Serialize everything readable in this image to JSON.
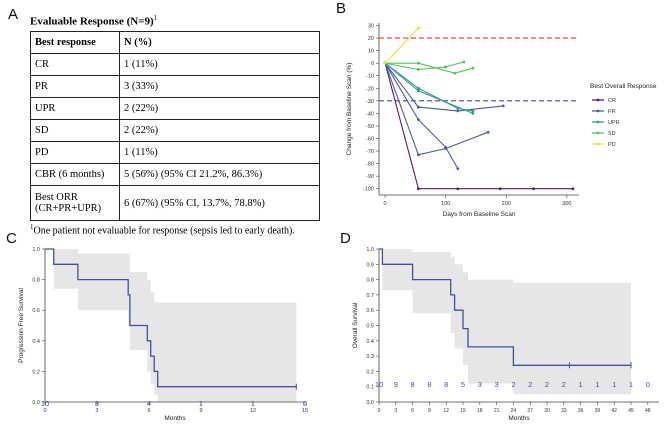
{
  "labels": {
    "A": "A",
    "B": "B",
    "C": "C",
    "D": "D"
  },
  "panelA": {
    "title": "Evaluable Response (N=9)",
    "title_sup": "1",
    "header": [
      "Best response",
      "N (%)"
    ],
    "rows": [
      {
        "label": "CR",
        "value": "1 (11%)"
      },
      {
        "label": "PR",
        "value": "3 (33%)"
      },
      {
        "label": "UPR",
        "value": "2 (22%)"
      },
      {
        "label": "SD",
        "value": "2 (22%)"
      },
      {
        "label": "PD",
        "value": "1 (11%)"
      },
      {
        "label": "CBR (6 months)",
        "value": "5 (56%) (95% CI 21.2%, 86.3%)"
      },
      {
        "label": "Best ORR (CR+PR+UPR)",
        "value": "6 (67%) (95% CI, 13.7%, 78.8%)"
      }
    ],
    "footnote_sup": "1",
    "footnote": "One patient not evaluable for response (sepsis led to early death)."
  },
  "chart_data": [
    {
      "id": "B",
      "type": "line",
      "xlabel": "Days from Baseline Scan",
      "ylabel": "Change from Baseline Scan (%)",
      "xlim": [
        -10,
        320
      ],
      "ylim": [
        -105,
        32
      ],
      "xticks": [
        0,
        100,
        200,
        300
      ],
      "yticks": [
        30,
        20,
        10,
        0,
        -10,
        -20,
        -30,
        -40,
        -50,
        -60,
        -70,
        -80,
        -90,
        -100
      ],
      "reference_lines": [
        {
          "y": 20,
          "color": "#e53935"
        },
        {
          "y": -30,
          "color": "#3949ab"
        }
      ],
      "legend_title": "Best Overall Response",
      "legend_position": "right",
      "series": [
        {
          "name": "CR",
          "color": "#5b1a6e",
          "lines": [
            [
              [
                0,
                0
              ],
              [
                55,
                -100
              ],
              [
                120,
                -100
              ],
              [
                190,
                -100
              ],
              [
                245,
                -100
              ],
              [
                310,
                -100
              ]
            ]
          ]
        },
        {
          "name": "PR",
          "color": "#4a5ca8",
          "lines": [
            [
              [
                0,
                0
              ],
              [
                55,
                -73
              ],
              [
                100,
                -68
              ],
              [
                170,
                -55
              ]
            ],
            [
              [
                0,
                0
              ],
              [
                55,
                -35
              ],
              [
                120,
                -38
              ],
              [
                195,
                -34
              ]
            ],
            [
              [
                0,
                0
              ],
              [
                55,
                -45
              ],
              [
                100,
                -67
              ],
              [
                120,
                -84
              ]
            ]
          ]
        },
        {
          "name": "UPR",
          "color": "#2e9e8f",
          "lines": [
            [
              [
                0,
                0
              ],
              [
                55,
                -20
              ],
              [
                120,
                -36
              ],
              [
                145,
                -38
              ]
            ],
            [
              [
                0,
                0
              ],
              [
                55,
                -22
              ],
              [
                145,
                -40
              ]
            ]
          ]
        },
        {
          "name": "SD",
          "color": "#52c35a",
          "lines": [
            [
              [
                0,
                0
              ],
              [
                55,
                0
              ],
              [
                115,
                -8
              ],
              [
                145,
                -4
              ]
            ],
            [
              [
                0,
                0
              ],
              [
                55,
                -5
              ],
              [
                100,
                -3
              ],
              [
                130,
                1
              ]
            ]
          ]
        },
        {
          "name": "PD",
          "color": "#f2e027",
          "lines": [
            [
              [
                0,
                0
              ],
              [
                55,
                28
              ]
            ]
          ]
        }
      ]
    },
    {
      "id": "C",
      "type": "line",
      "title": "",
      "xlabel": "Months",
      "ylabel": "Progression Free Survival",
      "xlim": [
        0,
        15
      ],
      "ylim": [
        0,
        1
      ],
      "xticks": [
        0,
        3,
        6,
        9,
        12,
        15
      ],
      "yticks": [
        0.0,
        0.2,
        0.4,
        0.6,
        0.8,
        1.0
      ],
      "series": [
        {
          "name": "PFS",
          "color": "#3f51a3",
          "x": [
            0,
            0.5,
            0.5,
            1.9,
            1.9,
            4.8,
            4.8,
            4.9,
            4.9,
            5.9,
            5.9,
            6.1,
            6.1,
            6.3,
            6.3,
            6.5,
            6.5,
            14.5
          ],
          "y": [
            1.0,
            1.0,
            0.9,
            0.9,
            0.8,
            0.8,
            0.7,
            0.7,
            0.5,
            0.5,
            0.4,
            0.4,
            0.3,
            0.3,
            0.2,
            0.2,
            0.1,
            0.1
          ]
        }
      ],
      "ci": {
        "x": [
          0,
          0.5,
          1.9,
          4.8,
          4.9,
          5.9,
          6.1,
          6.3,
          6.5,
          14.5
        ],
        "upper": [
          1.0,
          1.0,
          0.97,
          0.97,
          0.85,
          0.8,
          0.72,
          0.65,
          0.65,
          0.65
        ],
        "lower": [
          1.0,
          0.74,
          0.6,
          0.5,
          0.34,
          0.2,
          0.12,
          0.05,
          0.0,
          0.0
        ]
      },
      "at_risk": {
        "x": [
          0,
          3,
          6,
          9,
          12,
          15
        ],
        "labels": [
          "10",
          "8",
          "4",
          "1",
          "1",
          "0"
        ]
      }
    },
    {
      "id": "D",
      "type": "line",
      "xlabel": "Months",
      "ylabel": "Overall Survival",
      "xlim": [
        0,
        50
      ],
      "ylim": [
        0,
        1
      ],
      "xticks": [
        0,
        3,
        6,
        9,
        12,
        15,
        18,
        21,
        24,
        27,
        30,
        33,
        36,
        39,
        42,
        45,
        48
      ],
      "yticks": [
        0.0,
        0.1,
        0.2,
        0.3,
        0.4,
        0.5,
        0.6,
        0.7,
        0.8,
        0.9,
        1.0
      ],
      "series": [
        {
          "name": "OS",
          "color": "#3f51a3",
          "x": [
            0,
            0.6,
            0.6,
            6,
            6,
            12.8,
            12.8,
            13.5,
            13.5,
            15,
            15,
            15.9,
            15.9,
            24,
            24,
            45
          ],
          "y": [
            1.0,
            1.0,
            0.9,
            0.9,
            0.8,
            0.8,
            0.7,
            0.7,
            0.6,
            0.6,
            0.48,
            0.48,
            0.36,
            0.36,
            0.24,
            0.24
          ]
        }
      ],
      "censor": [
        {
          "x": 34,
          "y": 0.24
        },
        {
          "x": 45,
          "y": 0.24
        }
      ],
      "ci": {
        "x": [
          0,
          0.6,
          6,
          12.8,
          13.5,
          15,
          15.9,
          24,
          45
        ],
        "upper": [
          1.0,
          1.0,
          0.98,
          0.95,
          0.9,
          0.85,
          0.8,
          0.78,
          0.78
        ],
        "lower": [
          1.0,
          0.73,
          0.58,
          0.45,
          0.35,
          0.24,
          0.12,
          0.05,
          0.05
        ]
      },
      "at_risk": {
        "x": [
          0,
          3,
          6,
          9,
          12,
          15,
          18,
          21,
          24,
          27,
          30,
          33,
          36,
          39,
          42,
          45,
          48
        ],
        "labels": [
          "10",
          "9",
          "8",
          "8",
          "8",
          "5",
          "3",
          "3",
          "2",
          "2",
          "2",
          "2",
          "1",
          "1",
          "1",
          "1",
          "0"
        ]
      }
    }
  ]
}
